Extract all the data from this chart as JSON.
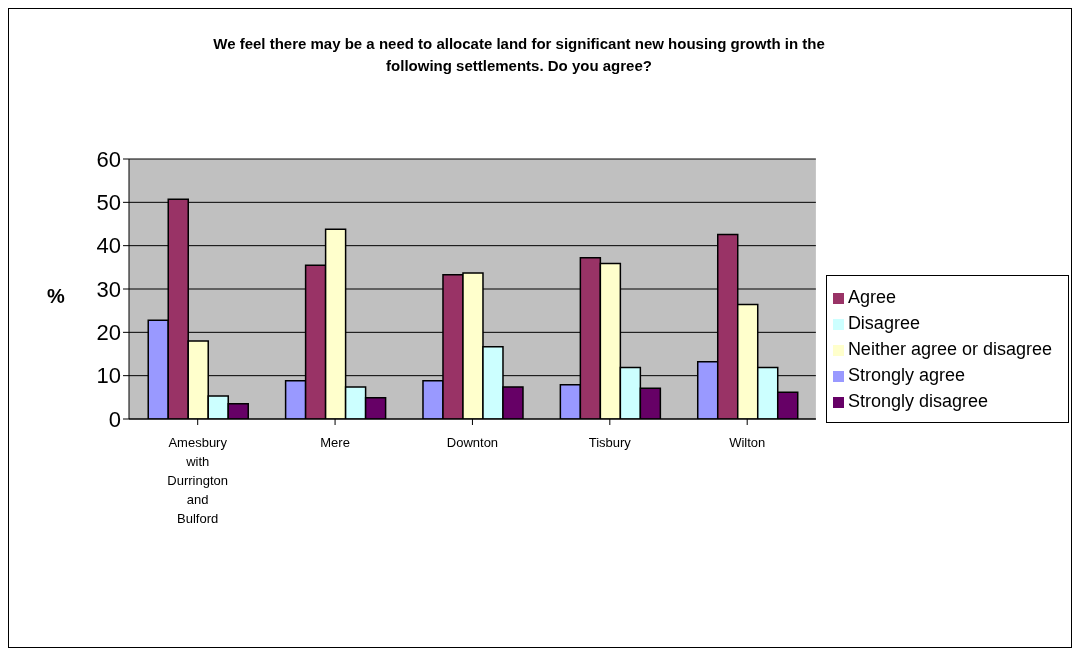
{
  "chart_data": {
    "type": "bar",
    "title": "We feel there may be a need to allocate land for significant new housing growth in the following settlements. Do you agree?",
    "ylabel": "%",
    "categories": [
      "Amesbury with Durrington and Bulford",
      "Mere",
      "Downton",
      "Tisbury",
      "Wilton"
    ],
    "series": [
      {
        "name": "Strongly agree",
        "color": "#9999ff",
        "values": [
          22.8,
          8.8,
          8.8,
          7.9,
          13.2
        ]
      },
      {
        "name": "Agree",
        "color": "#993366",
        "values": [
          50.7,
          35.5,
          33.3,
          37.2,
          42.6
        ]
      },
      {
        "name": "Neither agree or disagree",
        "color": "#ffffcc",
        "values": [
          18.0,
          43.8,
          33.7,
          35.9,
          26.4
        ]
      },
      {
        "name": "Disagree",
        "color": "#ccffff",
        "values": [
          5.3,
          7.4,
          16.7,
          11.9,
          11.9
        ]
      },
      {
        "name": "Strongly disagree",
        "color": "#660066",
        "values": [
          3.5,
          4.9,
          7.4,
          7.1,
          6.2
        ]
      }
    ],
    "ylim": [
      0,
      60
    ],
    "yticks": [
      0,
      10,
      20,
      30,
      40,
      50,
      60
    ],
    "grid": "y",
    "legend": "right"
  }
}
